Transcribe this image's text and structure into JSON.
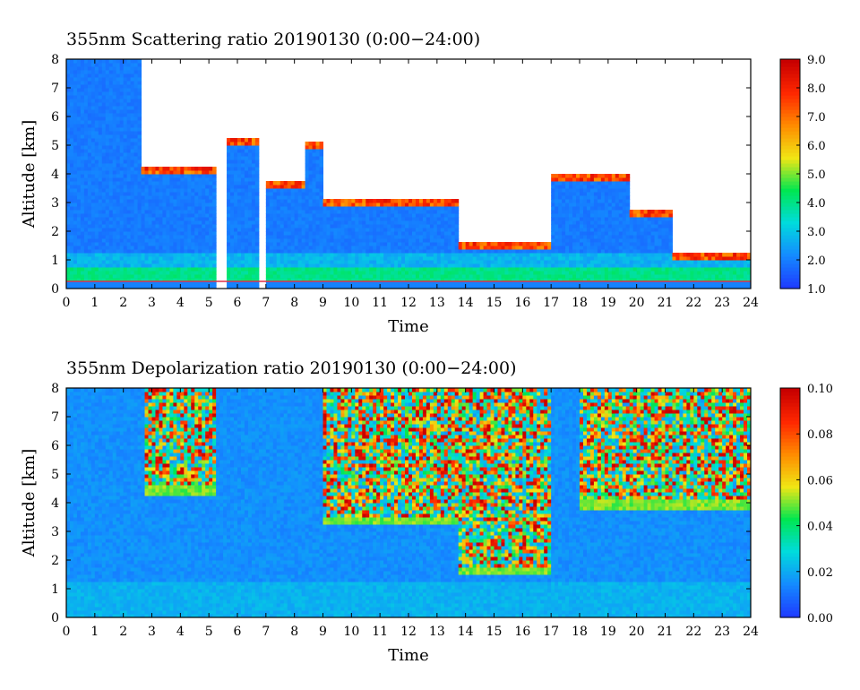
{
  "chart_data": [
    {
      "type": "heatmap",
      "title": "355nm Scattering ratio  20190130 (0:00−24:00)",
      "xlabel": "Time",
      "ylabel": "Altitude [km]",
      "xlim": [
        0,
        24
      ],
      "ylim": [
        0,
        8
      ],
      "x_ticks": [
        "0",
        "1",
        "2",
        "3",
        "4",
        "5",
        "6",
        "7",
        "8",
        "9",
        "10",
        "11",
        "12",
        "13",
        "14",
        "15",
        "16",
        "17",
        "18",
        "19",
        "20",
        "21",
        "22",
        "23",
        "24"
      ],
      "y_ticks": [
        "0",
        "1",
        "2",
        "3",
        "4",
        "5",
        "6",
        "7",
        "8"
      ],
      "colorbar": {
        "range": [
          1.0,
          9.0
        ],
        "ticks": [
          "1.0",
          "2.0",
          "3.0",
          "4.0",
          "5.0",
          "6.0",
          "7.0",
          "8.0",
          "9.0"
        ],
        "colormap": [
          "#1e3cff",
          "#148cff",
          "#00dcdc",
          "#00e650",
          "#f0e614",
          "#ff8c00",
          "#ff2800",
          "#c80000"
        ]
      },
      "white_regions_note": "missing / saturated",
      "cloud_top_km": [
        {
          "time_start": 0.0,
          "time_end": 2.6,
          "top": 8.0
        },
        {
          "time_start": 2.6,
          "time_end": 5.3,
          "top": 4.3
        },
        {
          "time_start": 5.6,
          "time_end": 6.7,
          "top": 5.3
        },
        {
          "time_start": 7.0,
          "time_end": 8.4,
          "top": 3.8
        },
        {
          "time_start": 8.4,
          "time_end": 9.0,
          "top": 5.1
        },
        {
          "time_start": 9.0,
          "time_end": 13.7,
          "top": 3.1
        },
        {
          "time_start": 13.7,
          "time_end": 17.0,
          "top": 1.6
        },
        {
          "time_start": 17.0,
          "time_end": 19.8,
          "top": 4.0
        },
        {
          "time_start": 19.8,
          "time_end": 21.2,
          "top": 2.7
        },
        {
          "time_start": 21.2,
          "time_end": 24.0,
          "top": 1.2
        }
      ],
      "boundary_layer_km": {
        "bottom": 0.2,
        "top": 0.7,
        "value": 4.0
      }
    },
    {
      "type": "heatmap",
      "title": "355nm Depolarization ratio  20190130 (0:00−24:00)",
      "xlabel": "Time",
      "ylabel": "Altitude [km]",
      "xlim": [
        0,
        24
      ],
      "ylim": [
        0,
        8
      ],
      "x_ticks": [
        "0",
        "1",
        "2",
        "3",
        "4",
        "5",
        "6",
        "7",
        "8",
        "9",
        "10",
        "11",
        "12",
        "13",
        "14",
        "15",
        "16",
        "17",
        "18",
        "19",
        "20",
        "21",
        "22",
        "23",
        "24"
      ],
      "y_ticks": [
        "0",
        "1",
        "2",
        "3",
        "4",
        "5",
        "6",
        "7",
        "8"
      ],
      "colorbar": {
        "range": [
          0.0,
          0.1
        ],
        "ticks": [
          "0.00",
          "0.02",
          "0.04",
          "0.06",
          "0.08",
          "0.10"
        ],
        "colormap": [
          "#1e3cff",
          "#148cff",
          "#00dcdc",
          "#00e650",
          "#f0e614",
          "#ff8c00",
          "#ff2800",
          "#c80000"
        ]
      },
      "noisy_high_depol_regions": [
        {
          "time_start": 2.7,
          "time_end": 5.3,
          "alt_start": 4.3,
          "alt_end": 8.0
        },
        {
          "time_start": 9.0,
          "time_end": 13.7,
          "alt_start": 3.2,
          "alt_end": 8.0
        },
        {
          "time_start": 13.7,
          "time_end": 17.0,
          "alt_start": 1.5,
          "alt_end": 8.0
        },
        {
          "time_start": 18.0,
          "time_end": 24.0,
          "alt_start": 3.8,
          "alt_end": 8.0
        }
      ]
    }
  ]
}
